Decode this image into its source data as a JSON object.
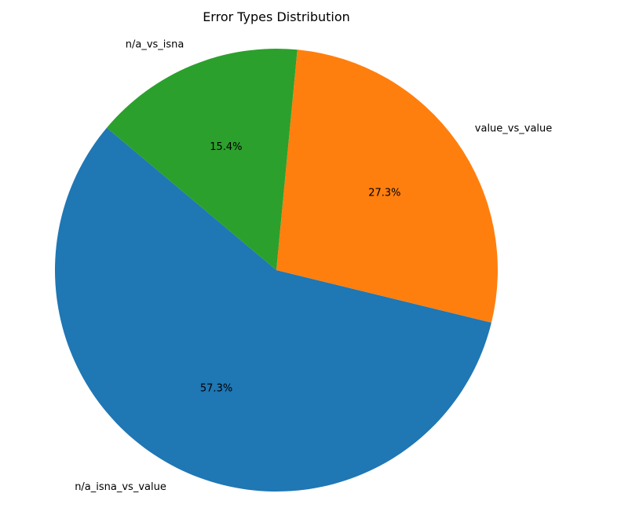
{
  "chart_data": {
    "type": "pie",
    "title": "Error Types Distribution",
    "labels": [
      "n/a_isna_vs_value",
      "value_vs_value",
      "n/a_vs_isna"
    ],
    "values": [
      57.3,
      27.3,
      15.4
    ],
    "percent_labels": [
      "57.3%",
      "27.3%",
      "15.4%"
    ],
    "colors": [
      "#1f77b4",
      "#ff7f0e",
      "#2ca02c"
    ],
    "start_angle_deg": 140,
    "direction": "counterclockwise",
    "legend": "none"
  }
}
